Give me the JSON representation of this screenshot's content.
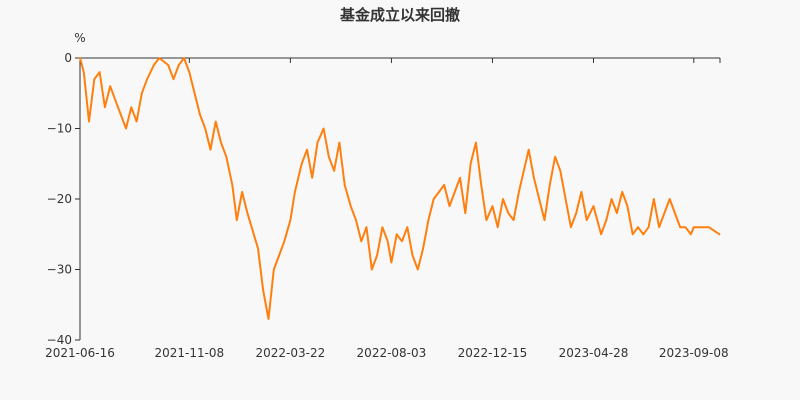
{
  "colors": {
    "background": "#f8f8f8",
    "series": "#ff7f0e",
    "text": "#333333"
  },
  "chart_data": {
    "type": "line",
    "title": "基金成立以来回撤",
    "ylabel": "%",
    "xlabel": "",
    "ylim": [
      -40,
      0
    ],
    "y_ticks": [
      0,
      -10,
      -20,
      -30,
      -40
    ],
    "x_tick_labels": [
      "2021-06-16",
      "2021-11-08",
      "2022-03-22",
      "2022-08-03",
      "2022-12-15",
      "2023-04-28",
      "2023-09-08"
    ],
    "grid": false,
    "legend": "none",
    "series": [
      {
        "color": "#ff7f0e",
        "x": [
          "2021-06-16",
          "2021-06-21",
          "2021-06-28",
          "2021-07-05",
          "2021-07-12",
          "2021-07-19",
          "2021-07-26",
          "2021-08-02",
          "2021-08-09",
          "2021-08-16",
          "2021-08-23",
          "2021-08-30",
          "2021-09-06",
          "2021-09-13",
          "2021-09-22",
          "2021-09-29",
          "2021-10-11",
          "2021-10-18",
          "2021-10-25",
          "2021-11-01",
          "2021-11-08",
          "2021-11-15",
          "2021-11-22",
          "2021-11-29",
          "2021-12-06",
          "2021-12-13",
          "2021-12-20",
          "2021-12-27",
          "2022-01-04",
          "2022-01-10",
          "2022-01-17",
          "2022-01-24",
          "2022-02-07",
          "2022-02-14",
          "2022-02-21",
          "2022-02-28",
          "2022-03-07",
          "2022-03-14",
          "2022-03-22",
          "2022-03-28",
          "2022-04-06",
          "2022-04-13",
          "2022-04-20",
          "2022-04-27",
          "2022-05-05",
          "2022-05-12",
          "2022-05-19",
          "2022-05-26",
          "2022-06-02",
          "2022-06-10",
          "2022-06-17",
          "2022-06-24",
          "2022-07-01",
          "2022-07-08",
          "2022-07-15",
          "2022-07-22",
          "2022-07-29",
          "2022-08-03",
          "2022-08-10",
          "2022-08-17",
          "2022-08-24",
          "2022-08-31",
          "2022-09-07",
          "2022-09-14",
          "2022-09-21",
          "2022-09-28",
          "2022-10-12",
          "2022-10-19",
          "2022-10-26",
          "2022-11-02",
          "2022-11-09",
          "2022-11-16",
          "2022-11-23",
          "2022-11-30",
          "2022-12-07",
          "2022-12-15",
          "2022-12-22",
          "2022-12-29",
          "2023-01-05",
          "2023-01-12",
          "2023-01-19",
          "2023-02-01",
          "2023-02-08",
          "2023-02-15",
          "2023-02-22",
          "2023-03-01",
          "2023-03-08",
          "2023-03-15",
          "2023-03-22",
          "2023-03-29",
          "2023-04-05",
          "2023-04-12",
          "2023-04-19",
          "2023-04-28",
          "2023-05-08",
          "2023-05-15",
          "2023-05-22",
          "2023-05-29",
          "2023-06-05",
          "2023-06-12",
          "2023-06-19",
          "2023-06-26",
          "2023-07-03",
          "2023-07-10",
          "2023-07-17",
          "2023-07-24",
          "2023-07-31",
          "2023-08-07",
          "2023-08-14",
          "2023-08-21",
          "2023-08-28",
          "2023-09-04",
          "2023-09-08",
          "2023-09-15",
          "2023-09-22",
          "2023-09-28",
          "2023-10-12"
        ],
        "y": [
          0,
          -2,
          -9,
          -3,
          -2,
          -7,
          -4,
          -6,
          -8,
          -10,
          -7,
          -9,
          -5,
          -3,
          -1,
          0,
          -1,
          -3,
          -1,
          0,
          -2,
          -5,
          -8,
          -10,
          -13,
          -9,
          -12,
          -14,
          -18,
          -23,
          -19,
          -22,
          -27,
          -33,
          -37,
          -30,
          -28,
          -26,
          -23,
          -19,
          -15,
          -13,
          -17,
          -12,
          -10,
          -14,
          -16,
          -12,
          -18,
          -21,
          -23,
          -26,
          -24,
          -30,
          -28,
          -24,
          -26,
          -29,
          -25,
          -26,
          -24,
          -28,
          -30,
          -27,
          -23,
          -20,
          -18,
          -21,
          -19,
          -17,
          -22,
          -15,
          -12,
          -18,
          -23,
          -21,
          -24,
          -20,
          -22,
          -23,
          -19,
          -13,
          -17,
          -20,
          -23,
          -18,
          -14,
          -16,
          -20,
          -24,
          -22,
          -19,
          -23,
          -21,
          -25,
          -23,
          -20,
          -22,
          -19,
          -21,
          -25,
          -24,
          -25,
          -24,
          -20,
          -24,
          -22,
          -20,
          -22,
          -24,
          -24,
          -25,
          -24,
          -24,
          -24,
          -24,
          -25
        ]
      }
    ]
  }
}
